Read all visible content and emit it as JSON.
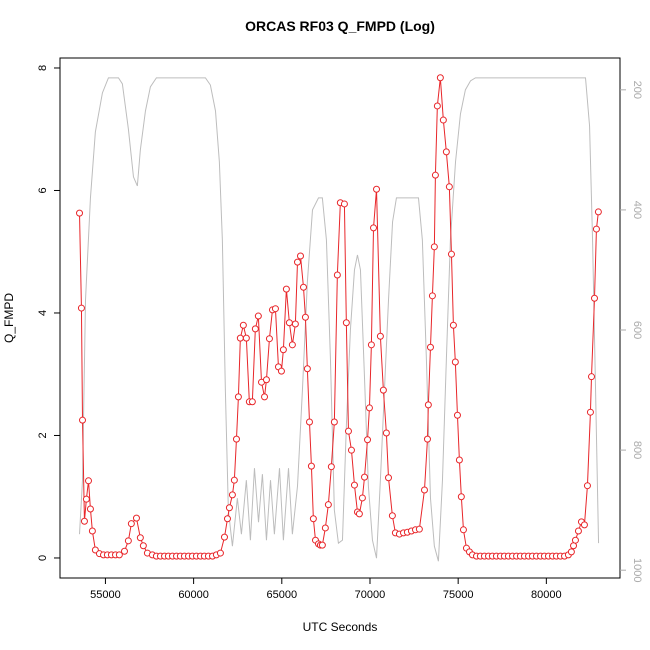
{
  "chart_data": {
    "type": "line",
    "title": "ORCAS RF03 Q_FMPD (Log)",
    "x_label": "UTC Seconds",
    "y_label": "Q_FMPD",
    "xlim": [
      52424,
      84176
    ],
    "ylim": [
      -0.327,
      8.163
    ],
    "y2lim": [
      1013,
      147
    ],
    "xticks": [
      55000,
      60000,
      65000,
      70000,
      75000,
      80000
    ],
    "yticks": [
      0,
      2,
      4,
      6,
      8
    ],
    "y2ticks": [
      200,
      400,
      600,
      800,
      1000
    ],
    "series": [
      {
        "color": "#bdbdbd",
        "axis": "y2",
        "x": [
          53530,
          53700,
          53870,
          54150,
          54430,
          54830,
          55170,
          55740,
          55960,
          56300,
          56590,
          56810,
          56980,
          57270,
          57550,
          57890,
          60670,
          60950,
          61240,
          61460,
          61630,
          61800,
          61970,
          62200,
          62480,
          62710,
          62990,
          63220,
          63450,
          63680,
          63900,
          64130,
          64360,
          64580,
          64870,
          65090,
          65380,
          65600,
          65890,
          66170,
          66450,
          66740,
          67080,
          67300,
          67530,
          67760,
          67980,
          68210,
          68440,
          68660,
          68890,
          69120,
          69290,
          69460,
          69690,
          69910,
          70140,
          70370,
          70590,
          70820,
          71050,
          71280,
          71500,
          72750,
          72970,
          73200,
          73430,
          73650,
          73880,
          74110,
          74330,
          74560,
          74850,
          75130,
          75410,
          75700,
          75980,
          82220,
          82450,
          82620,
          82790,
          82960
        ],
        "values": [
          940,
          850,
          550,
          380,
          270,
          205,
          180,
          180,
          190,
          265,
          345,
          360,
          300,
          235,
          195,
          180,
          180,
          192,
          235,
          320,
          450,
          700,
          900,
          960,
          880,
          940,
          850,
          950,
          830,
          920,
          840,
          950,
          850,
          940,
          830,
          950,
          830,
          940,
          860,
          700,
          520,
          400,
          380,
          380,
          450,
          650,
          900,
          955,
          950,
          760,
          600,
          500,
          475,
          500,
          680,
          860,
          950,
          980,
          850,
          700,
          550,
          420,
          380,
          380,
          450,
          650,
          880,
          960,
          985,
          850,
          650,
          450,
          320,
          240,
          200,
          185,
          180,
          180,
          260,
          450,
          700,
          955
        ]
      },
      {
        "color": "#e8262a",
        "marker": "circle",
        "x": [
          53530,
          53640,
          53700,
          53810,
          53920,
          54040,
          54150,
          54260,
          54430,
          54660,
          54890,
          55110,
          55340,
          55570,
          55790,
          56080,
          56300,
          56470,
          56760,
          56980,
          57150,
          57380,
          57660,
          57890,
          58120,
          58350,
          58570,
          58800,
          59030,
          59250,
          59480,
          59710,
          59930,
          60160,
          60390,
          60610,
          60840,
          61070,
          61290,
          61520,
          61750,
          61920,
          62030,
          62200,
          62310,
          62430,
          62540,
          62650,
          62820,
          62990,
          63160,
          63330,
          63500,
          63670,
          63850,
          64020,
          64130,
          64300,
          64470,
          64640,
          64810,
          64980,
          65090,
          65260,
          65430,
          65600,
          65770,
          65890,
          66060,
          66230,
          66340,
          66450,
          66570,
          66680,
          66790,
          66910,
          67080,
          67190,
          67300,
          67470,
          67640,
          67810,
          67980,
          68150,
          68320,
          68550,
          68660,
          68780,
          68950,
          69120,
          69290,
          69400,
          69570,
          69690,
          69860,
          69970,
          70080,
          70200,
          70370,
          70590,
          70760,
          70930,
          71050,
          71270,
          71440,
          71670,
          71900,
          72120,
          72350,
          72580,
          72800,
          73090,
          73260,
          73310,
          73430,
          73540,
          73650,
          73710,
          73820,
          73990,
          74160,
          74330,
          74500,
          74620,
          74730,
          74840,
          74960,
          75070,
          75180,
          75300,
          75470,
          75640,
          75810,
          76040,
          76260,
          76490,
          76720,
          76940,
          77170,
          77400,
          77620,
          77850,
          78080,
          78310,
          78530,
          78760,
          78990,
          79210,
          79440,
          79670,
          79890,
          80120,
          80350,
          80570,
          80800,
          81030,
          81250,
          81420,
          81540,
          81650,
          81820,
          81990,
          82160,
          82330,
          82500,
          82560,
          82730,
          82840,
          82950
        ],
        "values": [
          5.63,
          4.08,
          2.25,
          0.6,
          0.96,
          1.26,
          0.8,
          0.44,
          0.13,
          0.07,
          0.05,
          0.05,
          0.05,
          0.05,
          0.05,
          0.11,
          0.28,
          0.56,
          0.65,
          0.33,
          0.2,
          0.08,
          0.05,
          0.03,
          0.03,
          0.03,
          0.03,
          0.03,
          0.03,
          0.03,
          0.03,
          0.03,
          0.03,
          0.03,
          0.03,
          0.03,
          0.03,
          0.03,
          0.05,
          0.08,
          0.34,
          0.64,
          0.82,
          1.03,
          1.27,
          1.94,
          2.63,
          3.59,
          3.8,
          3.59,
          2.55,
          2.55,
          3.74,
          3.95,
          2.87,
          2.63,
          2.91,
          3.58,
          4.05,
          4.07,
          3.12,
          3.05,
          3.4,
          4.39,
          3.84,
          3.48,
          3.82,
          4.83,
          4.93,
          4.42,
          3.93,
          3.09,
          2.22,
          1.5,
          0.64,
          0.29,
          0.23,
          0.21,
          0.21,
          0.49,
          0.87,
          1.49,
          2.22,
          4.62,
          5.8,
          5.78,
          3.84,
          2.07,
          1.76,
          1.19,
          0.75,
          0.72,
          0.98,
          1.32,
          1.93,
          2.45,
          3.48,
          5.39,
          6.02,
          3.62,
          2.74,
          2.04,
          1.31,
          0.69,
          0.41,
          0.39,
          0.41,
          0.42,
          0.44,
          0.46,
          0.47,
          1.11,
          1.94,
          2.5,
          3.44,
          4.28,
          5.08,
          6.25,
          7.38,
          7.84,
          7.15,
          6.63,
          6.06,
          4.96,
          3.8,
          3.2,
          2.33,
          1.6,
          1.0,
          0.46,
          0.16,
          0.1,
          0.05,
          0.03,
          0.03,
          0.03,
          0.03,
          0.03,
          0.03,
          0.03,
          0.03,
          0.03,
          0.03,
          0.03,
          0.03,
          0.03,
          0.03,
          0.03,
          0.03,
          0.03,
          0.03,
          0.03,
          0.03,
          0.03,
          0.03,
          0.03,
          0.05,
          0.1,
          0.2,
          0.29,
          0.44,
          0.59,
          0.54,
          1.18,
          2.38,
          2.96,
          4.24,
          5.37,
          5.65
        ]
      }
    ]
  }
}
